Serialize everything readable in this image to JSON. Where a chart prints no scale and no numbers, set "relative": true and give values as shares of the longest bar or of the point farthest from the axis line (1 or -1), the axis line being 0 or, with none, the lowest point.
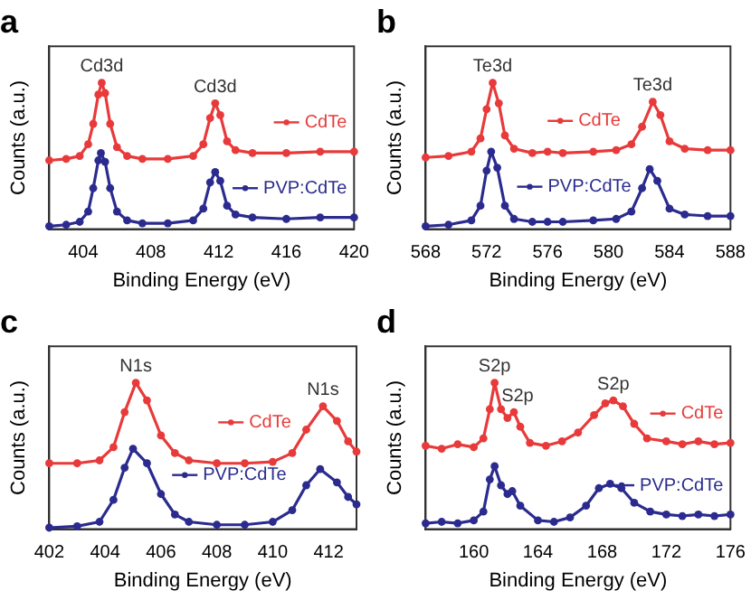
{
  "chart_data": [
    {
      "type": "line",
      "title": "a",
      "legend": "right",
      "xlabel": "Binding Energy (eV)",
      "ylabel": "Counts (a.u.)",
      "relative": true,
      "marker": "circle",
      "xlim": [
        402,
        420
      ],
      "xticks": [
        404,
        408,
        412,
        416,
        420
      ],
      "annotations": [
        {
          "text": "Cd3d",
          "x": 405.1,
          "y": 1.0
        },
        {
          "text": "Cd3d",
          "x": 411.8,
          "y": 0.86
        }
      ],
      "series": [
        {
          "name": "CdTe",
          "color": "#e83a3a",
          "x": [
            402,
            403,
            403.8,
            404.3,
            404.6,
            404.9,
            405.1,
            405.3,
            405.6,
            406,
            406.6,
            407.5,
            409,
            410.5,
            411.1,
            411.5,
            411.8,
            412.1,
            412.5,
            413,
            414,
            416,
            418,
            420
          ],
          "values": [
            0.47,
            0.48,
            0.5,
            0.58,
            0.72,
            0.92,
            1.0,
            0.93,
            0.72,
            0.56,
            0.5,
            0.48,
            0.48,
            0.5,
            0.58,
            0.76,
            0.86,
            0.78,
            0.6,
            0.54,
            0.52,
            0.52,
            0.53,
            0.53
          ]
        },
        {
          "name": "PVP:CdTe",
          "color": "#2b2b8f",
          "x": [
            402,
            403,
            403.8,
            404.3,
            404.6,
            404.9,
            405.05,
            405.3,
            405.6,
            406,
            406.6,
            407.5,
            409,
            410.5,
            411.1,
            411.5,
            411.8,
            412.1,
            412.5,
            413,
            414,
            416,
            418,
            420
          ],
          "values": [
            0.02,
            0.03,
            0.05,
            0.12,
            0.28,
            0.47,
            0.52,
            0.46,
            0.28,
            0.12,
            0.06,
            0.04,
            0.04,
            0.06,
            0.14,
            0.32,
            0.39,
            0.33,
            0.16,
            0.1,
            0.08,
            0.07,
            0.08,
            0.08
          ]
        }
      ]
    },
    {
      "type": "line",
      "title": "b",
      "legend": "right",
      "xlabel": "Binding Energy (eV)",
      "ylabel": "Counts (a.u.)",
      "relative": true,
      "marker": "circle",
      "xlim": [
        568,
        588
      ],
      "xticks": [
        568,
        572,
        576,
        580,
        584,
        588
      ],
      "annotations": [
        {
          "text": "Te3d",
          "x": 572.4,
          "y": 1.0
        },
        {
          "text": "Te3d",
          "x": 582.9,
          "y": 0.87
        }
      ],
      "series": [
        {
          "name": "CdTe",
          "color": "#e83a3a",
          "x": [
            568,
            569.5,
            571,
            571.6,
            572,
            572.4,
            572.8,
            573.2,
            573.8,
            575,
            576,
            577,
            579,
            580.5,
            581.5,
            582.2,
            582.9,
            583.4,
            584,
            585,
            586.5,
            588
          ],
          "values": [
            0.49,
            0.5,
            0.53,
            0.62,
            0.82,
            1.0,
            0.86,
            0.64,
            0.55,
            0.52,
            0.53,
            0.52,
            0.53,
            0.54,
            0.58,
            0.7,
            0.87,
            0.78,
            0.6,
            0.55,
            0.54,
            0.54
          ]
        },
        {
          "name": "PVP:CdTe",
          "color": "#2b2b8f",
          "x": [
            568,
            569.5,
            571,
            571.6,
            572,
            572.3,
            572.7,
            573.2,
            573.8,
            575,
            576,
            577,
            579,
            580.5,
            581.5,
            582.2,
            582.7,
            583.2,
            584,
            585,
            586.5,
            588
          ],
          "values": [
            0.02,
            0.03,
            0.06,
            0.16,
            0.4,
            0.53,
            0.42,
            0.16,
            0.07,
            0.05,
            0.05,
            0.05,
            0.06,
            0.07,
            0.12,
            0.28,
            0.41,
            0.33,
            0.14,
            0.1,
            0.09,
            0.09
          ]
        }
      ]
    },
    {
      "type": "line",
      "title": "c",
      "legend": "right",
      "xlabel": "Binding Energy (eV)",
      "ylabel": "Counts (a.u.)",
      "relative": true,
      "marker": "circle",
      "xlim": [
        402,
        413
      ],
      "xticks": [
        402,
        404,
        406,
        408,
        410,
        412
      ],
      "annotations": [
        {
          "text": "N1s",
          "x": 405.1,
          "y": 1.0
        },
        {
          "text": "N1s",
          "x": 411.8,
          "y": 0.84
        }
      ],
      "series": [
        {
          "name": "CdTe",
          "color": "#e83a3a",
          "x": [
            402,
            403,
            403.8,
            404.3,
            404.7,
            405.1,
            405.5,
            406,
            406.5,
            407,
            408,
            409,
            410,
            410.7,
            411.2,
            411.8,
            412.3,
            412.7,
            413
          ],
          "values": [
            0.45,
            0.45,
            0.47,
            0.56,
            0.8,
            1.0,
            0.88,
            0.64,
            0.52,
            0.47,
            0.45,
            0.45,
            0.46,
            0.52,
            0.68,
            0.84,
            0.74,
            0.6,
            0.53
          ]
        },
        {
          "name": "PVP:CdTe",
          "color": "#2b2b8f",
          "x": [
            402,
            403,
            403.8,
            404.3,
            404.7,
            405,
            405.5,
            406,
            406.5,
            407,
            408,
            409,
            410,
            410.7,
            411.2,
            411.7,
            412.3,
            412.7,
            413
          ],
          "values": [
            0.01,
            0.02,
            0.05,
            0.2,
            0.42,
            0.55,
            0.45,
            0.24,
            0.1,
            0.05,
            0.03,
            0.03,
            0.05,
            0.13,
            0.3,
            0.41,
            0.32,
            0.22,
            0.17
          ]
        }
      ]
    },
    {
      "type": "line",
      "title": "d",
      "legend": "right",
      "xlabel": "Binding Energy (eV)",
      "ylabel": "Counts (a.u.)",
      "relative": true,
      "marker": "circle",
      "xlim": [
        157,
        176
      ],
      "xticks": [
        160,
        164,
        168,
        172,
        176
      ],
      "annotations": [
        {
          "text": "S2p",
          "x": 161.3,
          "y": 1.0
        },
        {
          "text": "S2p",
          "x": 162.5,
          "y": 0.8
        },
        {
          "text": "S2p",
          "x": 168.7,
          "y": 0.88
        }
      ],
      "series": [
        {
          "name": "CdTe",
          "color": "#e83a3a",
          "x": [
            157,
            158,
            159,
            160,
            160.6,
            161,
            161.3,
            161.7,
            162.1,
            162.5,
            162.9,
            163.5,
            164.5,
            165.5,
            166.5,
            167.5,
            168.2,
            168.7,
            169.3,
            170,
            170.8,
            172,
            173,
            174,
            175,
            176
          ],
          "values": [
            0.57,
            0.55,
            0.58,
            0.56,
            0.62,
            0.82,
            1.0,
            0.82,
            0.76,
            0.8,
            0.7,
            0.59,
            0.57,
            0.6,
            0.66,
            0.78,
            0.86,
            0.88,
            0.84,
            0.72,
            0.62,
            0.6,
            0.58,
            0.6,
            0.58,
            0.59
          ]
        },
        {
          "name": "PVP:CdTe",
          "color": "#2b2b8f",
          "x": [
            157,
            158,
            159,
            160,
            160.6,
            161,
            161.3,
            161.7,
            162.1,
            162.4,
            162.9,
            164,
            165,
            166,
            167,
            167.8,
            168.5,
            169.2,
            170,
            171,
            172,
            173,
            174,
            175,
            176
          ],
          "values": [
            0.04,
            0.05,
            0.04,
            0.06,
            0.12,
            0.34,
            0.43,
            0.3,
            0.24,
            0.26,
            0.16,
            0.06,
            0.05,
            0.08,
            0.16,
            0.28,
            0.31,
            0.28,
            0.18,
            0.12,
            0.1,
            0.09,
            0.1,
            0.09,
            0.1
          ]
        }
      ]
    }
  ]
}
